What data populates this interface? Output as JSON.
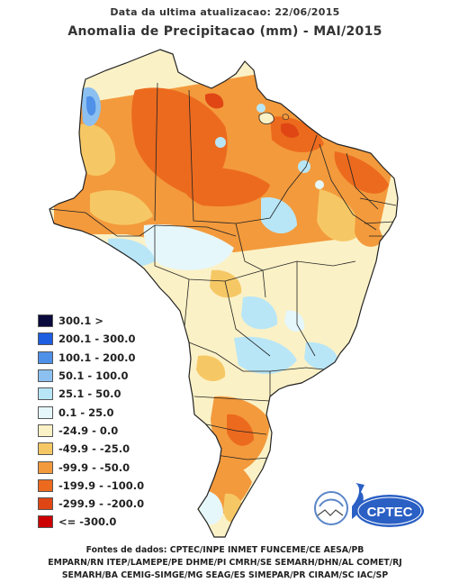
{
  "header": {
    "update": "Data da ultima atualizacao: 22/06/2015",
    "title": "Anomalia de Precipitacao (mm) - MAI/2015"
  },
  "legend": [
    {
      "label": "300.1 >",
      "color": "#0a0a3c"
    },
    {
      "label": "200.1 - 300.0",
      "color": "#1e5ee0"
    },
    {
      "label": "100.1 - 200.0",
      "color": "#4f90e8"
    },
    {
      "label": "50.1 - 100.0",
      "color": "#8cc0f0"
    },
    {
      "label": "25.1 - 50.0",
      "color": "#b8e6f7"
    },
    {
      "label": "0.1 - 25.0",
      "color": "#e6f7fb"
    },
    {
      "label": "-24.9 - 0.0",
      "color": "#fbf1c6"
    },
    {
      "label": "-49.9 - -25.0",
      "color": "#f6c865"
    },
    {
      "label": "-99.9 - -50.0",
      "color": "#f39a3c"
    },
    {
      "label": "-199.9 - -100.0",
      "color": "#ec6a1e"
    },
    {
      "label": "-299.9 - -200.0",
      "color": "#e04614"
    },
    {
      "label": "<= -300.0",
      "color": "#cc0000"
    }
  ],
  "logo": {
    "text": "CPTEC"
  },
  "sources": [
    "Fontes de dados: CPTEC/INPE INMET FUNCEME/CE AESA/PB",
    "EMPARN/RN ITEP/LAMEPE/PE DHME/PI CMRH/SE SEMARH/DHN/AL COMET/RJ",
    "SEMARH/BA CEMIG-SIMGE/MG SEAG/ES SIMEPAR/PR CIRAM/SC IAC/SP"
  ]
}
